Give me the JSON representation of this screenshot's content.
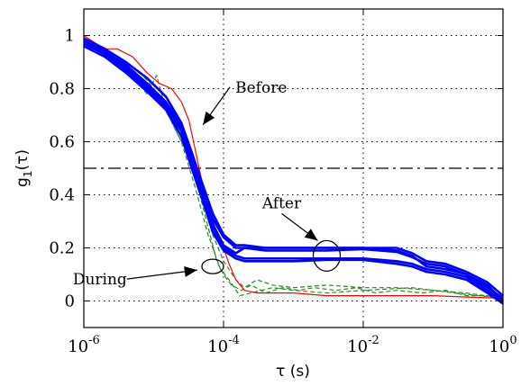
{
  "chart_data": {
    "type": "line",
    "title": "",
    "xlabel": "τ (s)",
    "ylabel_main": "g",
    "ylabel_sub": "1",
    "ylabel_tail": "(τ)",
    "xscale": "log",
    "xlim": [
      1e-06,
      1
    ],
    "ylim": [
      -0.1,
      1.1
    ],
    "grid": true,
    "xticks": [
      {
        "value": 1e-06,
        "base": "10",
        "exp": "-6"
      },
      {
        "value": 0.0001,
        "base": "10",
        "exp": "-4"
      },
      {
        "value": 0.01,
        "base": "10",
        "exp": "-2"
      },
      {
        "value": 1,
        "base": "10",
        "exp": "0"
      }
    ],
    "yticks": [
      {
        "value": 0,
        "label": "0"
      },
      {
        "value": 0.2,
        "label": "0.2"
      },
      {
        "value": 0.4,
        "label": "0.4"
      },
      {
        "value": 0.6,
        "label": "0.6"
      },
      {
        "value": 0.8,
        "label": "0.8"
      },
      {
        "value": 1,
        "label": "1"
      }
    ],
    "reference_line": {
      "y": 0.5,
      "style": "dash-dot",
      "color": "#000000"
    },
    "series": [
      {
        "group": "Before",
        "color": "#ff0000",
        "style": "solid",
        "x": [
          1e-06,
          1.5e-06,
          2e-06,
          3e-06,
          5e-06,
          8e-06,
          1.2e-05,
          1.8e-05,
          2.5e-05,
          3.2e-05,
          4e-05,
          5e-05,
          6e-05,
          7e-05,
          8e-05,
          9e-05,
          0.0001,
          0.00012,
          0.00015,
          0.0002,
          0.0003,
          0.0005,
          0.001,
          0.003,
          0.01,
          0.03,
          0.1,
          0.3,
          1
        ],
        "y": [
          1.0,
          0.97,
          0.95,
          0.95,
          0.92,
          0.86,
          0.82,
          0.8,
          0.75,
          0.68,
          0.56,
          0.44,
          0.36,
          0.3,
          0.26,
          0.23,
          0.2,
          0.14,
          0.08,
          0.04,
          0.03,
          0.03,
          0.03,
          0.02,
          0.02,
          0.02,
          0.02,
          0.015,
          0.01
        ]
      },
      {
        "group": "During",
        "color": "#228b22",
        "style": "dashed",
        "x": [
          1e-06,
          2e-06,
          3e-06,
          4e-06,
          6e-06,
          8e-06,
          1.1e-05,
          1.5e-05,
          2e-05,
          3e-05,
          4e-05,
          5e-05,
          6e-05,
          8e-05,
          0.0001,
          0.00013,
          0.00018,
          0.00025,
          0.0004,
          0.0007,
          0.0012,
          0.002,
          0.004,
          0.008,
          0.015,
          0.03,
          0.07,
          0.15,
          0.3,
          0.6,
          1
        ],
        "y": [
          0.98,
          0.93,
          0.9,
          0.87,
          0.82,
          0.78,
          0.85,
          0.72,
          0.65,
          0.56,
          0.46,
          0.36,
          0.28,
          0.15,
          0.1,
          0.06,
          0.04,
          0.06,
          0.03,
          0.05,
          0.04,
          0.05,
          0.04,
          0.05,
          0.03,
          0.04,
          0.03,
          0.04,
          0.02,
          0.02,
          0.01
        ]
      },
      {
        "group": "During",
        "color": "#228b22",
        "style": "dashed",
        "x": [
          1e-06,
          2e-06,
          4e-06,
          7e-06,
          1e-05,
          1.5e-05,
          2.5e-05,
          3.5e-05,
          5e-05,
          7e-05,
          0.0001,
          0.00015,
          0.0002,
          0.0003,
          0.0005,
          0.001,
          0.003,
          0.01,
          0.03,
          0.1,
          0.3,
          1
        ],
        "y": [
          0.99,
          0.95,
          0.9,
          0.85,
          0.8,
          0.74,
          0.62,
          0.5,
          0.38,
          0.25,
          0.15,
          0.08,
          0.05,
          0.08,
          0.06,
          0.05,
          0.06,
          0.05,
          0.05,
          0.04,
          0.03,
          0.01
        ]
      },
      {
        "group": "During",
        "color": "#228b22",
        "style": "dashed",
        "x": [
          1e-06,
          1.5e-06,
          3e-06,
          6e-06,
          1e-05,
          1.5e-05,
          2.5e-05,
          4e-05,
          6e-05,
          9e-05,
          0.00012,
          0.00017,
          0.00025,
          0.0005,
          0.001,
          0.003,
          0.01,
          0.05,
          0.2,
          1
        ],
        "y": [
          0.97,
          0.96,
          0.88,
          0.84,
          0.78,
          0.72,
          0.6,
          0.42,
          0.25,
          0.12,
          0.08,
          0.02,
          0.03,
          0.05,
          0.04,
          0.03,
          0.04,
          0.05,
          0.03,
          0.01
        ]
      },
      {
        "group": "After",
        "color": "#0000ff",
        "style": "solid",
        "x": [
          1e-06,
          2e-06,
          4e-06,
          8e-06,
          1.5e-05,
          2.5e-05,
          3.5e-05,
          5e-05,
          7e-05,
          0.0001,
          0.00015,
          0.0002,
          0.0004,
          0.001,
          0.003,
          0.01,
          0.03,
          0.05,
          0.08,
          0.15,
          0.3,
          0.6,
          1
        ],
        "y": [
          0.99,
          0.95,
          0.9,
          0.84,
          0.77,
          0.67,
          0.56,
          0.44,
          0.33,
          0.25,
          0.21,
          0.21,
          0.2,
          0.2,
          0.2,
          0.2,
          0.19,
          0.17,
          0.13,
          0.12,
          0.1,
          0.06,
          0.0
        ]
      },
      {
        "group": "After",
        "color": "#0000ff",
        "style": "solid",
        "x": [
          1e-06,
          2e-06,
          4e-06,
          8e-06,
          1.5e-05,
          2.5e-05,
          3.5e-05,
          5e-05,
          7e-05,
          0.0001,
          0.00015,
          0.0002,
          0.0004,
          0.001,
          0.003,
          0.01,
          0.03,
          0.05,
          0.08,
          0.15,
          0.3,
          0.6,
          1
        ],
        "y": [
          0.98,
          0.94,
          0.89,
          0.82,
          0.75,
          0.66,
          0.54,
          0.42,
          0.31,
          0.24,
          0.2,
          0.2,
          0.2,
          0.2,
          0.2,
          0.2,
          0.2,
          0.18,
          0.15,
          0.14,
          0.11,
          0.07,
          0.02
        ]
      },
      {
        "group": "After",
        "color": "#0000ff",
        "style": "solid",
        "x": [
          1e-06,
          2e-06,
          4e-06,
          8e-06,
          1.5e-05,
          2.5e-05,
          3.5e-05,
          5e-05,
          7e-05,
          0.0001,
          0.00015,
          0.0002,
          0.0004,
          0.001,
          0.003,
          0.01,
          0.03,
          0.05,
          0.08,
          0.15,
          0.3,
          0.6,
          1
        ],
        "y": [
          0.97,
          0.93,
          0.87,
          0.8,
          0.73,
          0.64,
          0.52,
          0.4,
          0.28,
          0.2,
          0.17,
          0.16,
          0.16,
          0.16,
          0.16,
          0.16,
          0.15,
          0.14,
          0.12,
          0.11,
          0.09,
          0.04,
          0.0
        ]
      },
      {
        "group": "After",
        "color": "#0000ff",
        "style": "solid",
        "x": [
          1e-06,
          2e-06,
          4e-06,
          8e-06,
          1.5e-05,
          2.5e-05,
          3.5e-05,
          5e-05,
          7e-05,
          0.0001,
          0.00015,
          0.0002,
          0.0004,
          0.001,
          0.003,
          0.01,
          0.03,
          0.05,
          0.08,
          0.15,
          0.3,
          0.6,
          1
        ],
        "y": [
          0.96,
          0.92,
          0.86,
          0.79,
          0.72,
          0.62,
          0.5,
          0.38,
          0.26,
          0.19,
          0.16,
          0.15,
          0.15,
          0.15,
          0.155,
          0.155,
          0.14,
          0.13,
          0.11,
          0.1,
          0.08,
          0.03,
          -0.01
        ]
      },
      {
        "group": "After",
        "color": "#0000ff",
        "style": "solid",
        "x": [
          1e-06,
          2e-06,
          4e-06,
          8e-06,
          1.5e-05,
          2.5e-05,
          3.5e-05,
          5e-05,
          7e-05,
          0.0001,
          0.00015,
          0.0002,
          0.0004,
          0.001,
          0.003,
          0.01,
          0.03,
          0.05,
          0.08,
          0.15,
          0.3,
          0.6,
          1
        ],
        "y": [
          0.98,
          0.94,
          0.88,
          0.81,
          0.74,
          0.65,
          0.53,
          0.41,
          0.29,
          0.21,
          0.18,
          0.2,
          0.19,
          0.19,
          0.19,
          0.195,
          0.185,
          0.165,
          0.14,
          0.13,
          0.1,
          0.05,
          0.01
        ]
      }
    ],
    "annotations": [
      {
        "text": "Before",
        "target_x": 4.5e-05,
        "target_y": 0.65
      },
      {
        "text": "After",
        "target_x": 0.003,
        "target_y": 0.18
      },
      {
        "text": "During",
        "target_x": 6e-05,
        "target_y": 0.13
      }
    ],
    "ellipses": [
      {
        "cx": 0.003,
        "cy": 0.17
      },
      {
        "cx": 7e-05,
        "cy": 0.13
      }
    ]
  }
}
